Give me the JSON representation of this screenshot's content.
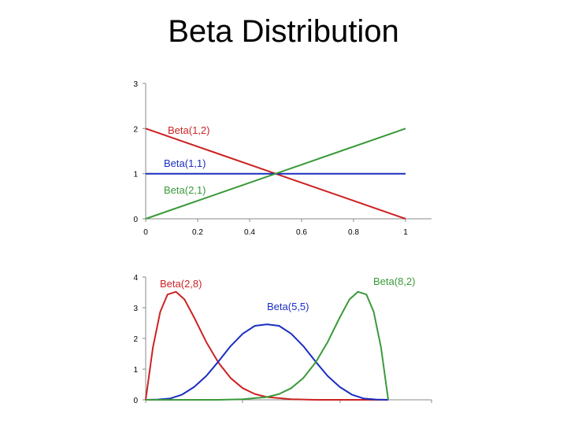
{
  "title": "Beta Distribution",
  "chart_data": [
    {
      "type": "line",
      "xlim": [
        0,
        1
      ],
      "ylim": [
        0,
        3
      ],
      "x_ticks": [
        "0",
        "0.2",
        "0.4",
        "0.6",
        "0.8",
        "1"
      ],
      "y_ticks": [
        "0",
        "1",
        "2",
        "3"
      ],
      "grid": false,
      "series": [
        {
          "name": "Beta(1,2)",
          "color": "#cc2222",
          "points": [
            [
              0,
              2
            ],
            [
              0.25,
              1.5
            ],
            [
              0.5,
              1
            ],
            [
              0.75,
              0.5
            ],
            [
              1,
              0
            ]
          ]
        },
        {
          "name": "Beta(1,1)",
          "color": "#1a2ec0",
          "points": [
            [
              0,
              1
            ],
            [
              1,
              1
            ]
          ]
        },
        {
          "name": "Beta(2,1)",
          "color": "#3a9a3a",
          "points": [
            [
              0,
              0
            ],
            [
              0.25,
              0.5
            ],
            [
              0.5,
              1
            ],
            [
              0.75,
              1.5
            ],
            [
              1,
              2
            ]
          ]
        }
      ]
    },
    {
      "type": "line",
      "xlim": [
        0,
        1
      ],
      "ylim": [
        0,
        4
      ],
      "y_ticks": [
        "0",
        "1",
        "2",
        "3",
        "4"
      ],
      "grid": false,
      "series": [
        {
          "name": "Beta(2,8)",
          "color": "#cc2222",
          "points": [
            [
              0,
              0
            ],
            [
              0.03,
              1.71
            ],
            [
              0.06,
              2.87
            ],
            [
              0.09,
              3.43
            ],
            [
              0.125,
              3.52
            ],
            [
              0.16,
              3.27
            ],
            [
              0.2,
              2.68
            ],
            [
              0.25,
              1.88
            ],
            [
              0.3,
              1.21
            ],
            [
              0.35,
              0.71
            ],
            [
              0.4,
              0.38
            ],
            [
              0.45,
              0.19
            ],
            [
              0.5,
              0.09
            ],
            [
              0.6,
              0.02
            ],
            [
              0.7,
              0
            ],
            [
              1,
              0
            ]
          ]
        },
        {
          "name": "Beta(5,5)",
          "color": "#1a2ec0",
          "points": [
            [
              0,
              0
            ],
            [
              0.05,
              0.01
            ],
            [
              0.1,
              0.04
            ],
            [
              0.15,
              0.17
            ],
            [
              0.2,
              0.42
            ],
            [
              0.25,
              0.78
            ],
            [
              0.3,
              1.25
            ],
            [
              0.35,
              1.75
            ],
            [
              0.4,
              2.15
            ],
            [
              0.45,
              2.41
            ],
            [
              0.5,
              2.46
            ],
            [
              0.55,
              2.41
            ],
            [
              0.6,
              2.15
            ],
            [
              0.65,
              1.75
            ],
            [
              0.7,
              1.25
            ],
            [
              0.75,
              0.78
            ],
            [
              0.8,
              0.42
            ],
            [
              0.85,
              0.17
            ],
            [
              0.9,
              0.04
            ],
            [
              0.95,
              0.01
            ],
            [
              1,
              0
            ]
          ]
        },
        {
          "name": "Beta(8,2)",
          "color": "#3a9a3a",
          "points": [
            [
              0,
              0
            ],
            [
              0.3,
              0
            ],
            [
              0.4,
              0.02
            ],
            [
              0.5,
              0.09
            ],
            [
              0.55,
              0.19
            ],
            [
              0.6,
              0.38
            ],
            [
              0.65,
              0.71
            ],
            [
              0.7,
              1.21
            ],
            [
              0.75,
              1.88
            ],
            [
              0.8,
              2.68
            ],
            [
              0.84,
              3.27
            ],
            [
              0.875,
              3.52
            ],
            [
              0.91,
              3.43
            ],
            [
              0.94,
              2.87
            ],
            [
              0.97,
              1.71
            ],
            [
              1,
              0
            ]
          ]
        }
      ]
    }
  ]
}
